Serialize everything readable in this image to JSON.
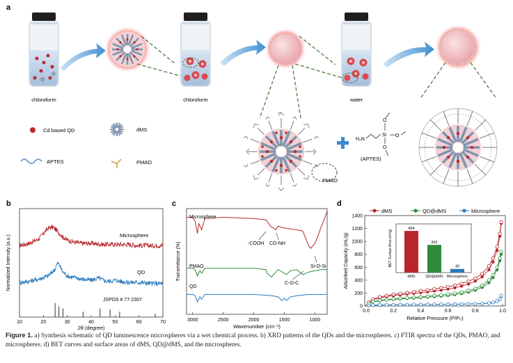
{
  "panel_labels": {
    "a": "a",
    "b": "b",
    "c": "c",
    "d": "d"
  },
  "panel_a": {
    "jar_labels": [
      "chloroform",
      "chloroform",
      "water"
    ],
    "legend": {
      "qd": "Cd based QD",
      "dms": "dMS",
      "aptes": "APTES",
      "pmao": "PMAO"
    },
    "aptes_label": "(APTES)",
    "pmao_label": "PMAO",
    "formula": {
      "h2n": "H₂N",
      "si": "Si",
      "o": "O"
    }
  },
  "chart_data": [
    {
      "id": "b",
      "type": "line",
      "xlabel": "2θ (degree)",
      "ylabel": "Normalized Intensity (a.u.)",
      "xlim": [
        10,
        70
      ],
      "xticks": [
        10,
        20,
        30,
        40,
        50,
        60,
        70
      ],
      "annotations": [
        "Microsphere",
        "QD",
        "JSPDS # 77-2307"
      ],
      "series": [
        {
          "name": "Microsphere",
          "color": "#b8262c",
          "x": [
            10,
            14,
            18,
            20,
            22,
            24,
            26,
            28,
            30,
            33,
            36,
            40,
            45,
            50,
            55,
            60,
            65,
            70
          ],
          "y": [
            0.66,
            0.68,
            0.72,
            0.77,
            0.82,
            0.83,
            0.79,
            0.74,
            0.71,
            0.69,
            0.68,
            0.68,
            0.67,
            0.67,
            0.67,
            0.66,
            0.66,
            0.66
          ]
        },
        {
          "name": "QD",
          "color": "#2b7bbd",
          "x": [
            10,
            14,
            18,
            22,
            24,
            25,
            26,
            27,
            28,
            30,
            32,
            36,
            40,
            43,
            45,
            47,
            50,
            55,
            60,
            65,
            70
          ],
          "y": [
            0.32,
            0.33,
            0.35,
            0.38,
            0.42,
            0.45,
            0.5,
            0.47,
            0.42,
            0.38,
            0.37,
            0.35,
            0.34,
            0.36,
            0.34,
            0.33,
            0.34,
            0.32,
            0.32,
            0.31,
            0.31
          ]
        }
      ],
      "reference_peaks": {
        "x": [
          24.9,
          26.5,
          28.2,
          36.6,
          43.7,
          47.9,
          51.9,
          66.8
        ],
        "height": [
          0.13,
          0.1,
          0.08,
          0.05,
          0.08,
          0.07,
          0.05,
          0.03
        ]
      }
    },
    {
      "id": "c",
      "type": "line",
      "xlabel": "Wavenumber (cm⁻¹)",
      "ylabel": "Transmittance (%)",
      "xlim": [
        3100,
        800
      ],
      "xticks": [
        3000,
        2500,
        2000,
        1500,
        1000
      ],
      "annotations": [
        "Microsphere",
        "PMAO",
        "QD",
        "-COOH",
        "CO-NH",
        "Si-O-Si",
        "C-O-C"
      ],
      "series": [
        {
          "name": "Microsphere",
          "color": "#b8262c",
          "x": [
            3100,
            3000,
            2960,
            2924,
            2900,
            2853,
            2800,
            2500,
            2000,
            1800,
            1730,
            1700,
            1640,
            1600,
            1550,
            1450,
            1300,
            1200,
            1100,
            1070,
            1000,
            950,
            900,
            850,
            800
          ],
          "y": [
            0.93,
            0.93,
            0.9,
            0.8,
            0.88,
            0.83,
            0.92,
            0.93,
            0.92,
            0.91,
            0.86,
            0.85,
            0.83,
            0.86,
            0.85,
            0.84,
            0.83,
            0.82,
            0.7,
            0.68,
            0.72,
            0.78,
            0.85,
            0.91,
            0.98
          ]
        },
        {
          "name": "PMAO",
          "color": "#2e8b3a",
          "x": [
            3100,
            3000,
            2960,
            2924,
            2880,
            2853,
            2800,
            2500,
            2000,
            1800,
            1780,
            1710,
            1600,
            1465,
            1400,
            1300,
            1200,
            1100,
            1000,
            900,
            800
          ],
          "y": [
            0.52,
            0.52,
            0.51,
            0.46,
            0.5,
            0.48,
            0.52,
            0.52,
            0.52,
            0.51,
            0.48,
            0.45,
            0.51,
            0.47,
            0.5,
            0.51,
            0.47,
            0.49,
            0.5,
            0.51,
            0.51
          ]
        },
        {
          "name": "QD",
          "color": "#2b7bbd",
          "x": [
            3100,
            3000,
            2960,
            2924,
            2880,
            2853,
            2800,
            2500,
            2000,
            1700,
            1600,
            1540,
            1500,
            1465,
            1400,
            1300,
            1100,
            1000,
            900,
            800
          ],
          "y": [
            0.31,
            0.31,
            0.3,
            0.25,
            0.29,
            0.27,
            0.31,
            0.31,
            0.31,
            0.3,
            0.29,
            0.26,
            0.28,
            0.26,
            0.29,
            0.3,
            0.31,
            0.31,
            0.31,
            0.31
          ]
        }
      ]
    },
    {
      "id": "d",
      "type": "line",
      "xlabel": "Relative Pressure (P/P₀)",
      "ylabel": "Adsorbed Capacity (mL/g)",
      "xlim": [
        0,
        1.0
      ],
      "ylim": [
        0,
        1400
      ],
      "xticks": [
        0.0,
        0.2,
        0.4,
        0.6,
        0.8,
        1.0
      ],
      "yticks": [
        0,
        200,
        400,
        600,
        800,
        1000,
        1200,
        1400
      ],
      "legend": [
        "dMS",
        "QD@dMS",
        "Microsphere"
      ],
      "legend_position": "top",
      "series": [
        {
          "name": "dMS",
          "color": "#b8262c",
          "x": [
            0.02,
            0.05,
            0.1,
            0.15,
            0.2,
            0.25,
            0.3,
            0.35,
            0.4,
            0.45,
            0.5,
            0.55,
            0.6,
            0.65,
            0.7,
            0.75,
            0.8,
            0.85,
            0.9,
            0.93,
            0.96,
            0.98,
            0.99
          ],
          "adsorption": [
            55,
            95,
            125,
            145,
            160,
            172,
            184,
            195,
            207,
            219,
            232,
            246,
            262,
            282,
            308,
            340,
            385,
            450,
            560,
            680,
            860,
            1080,
            1280
          ],
          "desorption": [
            60,
            105,
            140,
            160,
            178,
            192,
            206,
            220,
            234,
            248,
            264,
            280,
            298,
            320,
            348,
            382,
            430,
            500,
            620,
            740,
            920,
            1120,
            1300
          ]
        },
        {
          "name": "QD@dMS",
          "color": "#2e8b3a",
          "x": [
            0.02,
            0.05,
            0.1,
            0.15,
            0.2,
            0.25,
            0.3,
            0.35,
            0.4,
            0.45,
            0.5,
            0.55,
            0.6,
            0.65,
            0.7,
            0.75,
            0.8,
            0.85,
            0.9,
            0.93,
            0.96,
            0.98,
            0.99
          ],
          "adsorption": [
            35,
            62,
            80,
            92,
            100,
            108,
            115,
            122,
            129,
            136,
            144,
            153,
            163,
            176,
            192,
            214,
            244,
            288,
            360,
            440,
            560,
            700,
            800
          ],
          "desorption": [
            38,
            68,
            88,
            100,
            110,
            118,
            126,
            134,
            142,
            150,
            160,
            170,
            182,
            196,
            214,
            238,
            270,
            318,
            400,
            480,
            600,
            740,
            840
          ]
        },
        {
          "name": "Microsphere",
          "color": "#2b7bbd",
          "x": [
            0.02,
            0.05,
            0.1,
            0.15,
            0.2,
            0.25,
            0.3,
            0.35,
            0.4,
            0.45,
            0.5,
            0.55,
            0.6,
            0.65,
            0.7,
            0.75,
            0.8,
            0.85,
            0.9,
            0.93,
            0.96,
            0.98,
            0.99
          ],
          "adsorption": [
            8,
            12,
            15,
            17,
            18,
            19,
            20,
            21,
            22,
            23,
            24,
            25,
            26,
            27,
            28,
            30,
            32,
            35,
            42,
            52,
            70,
            100,
            150
          ],
          "desorption": [
            9,
            13,
            16,
            18,
            19,
            20,
            21,
            22,
            23,
            24,
            25,
            26,
            27,
            28,
            30,
            32,
            34,
            38,
            46,
            56,
            76,
            106,
            160
          ]
        }
      ],
      "inset": {
        "type": "bar",
        "ylabel": "BET Surface Area (m²/g)",
        "categories": [
          "dMS",
          "QD@dMS",
          "Microsphere"
        ],
        "values": [
          454,
          302,
          40
        ],
        "value_labels": [
          "454",
          "302",
          "40"
        ],
        "colors": [
          "#b8262c",
          "#2e8b3a",
          "#2b7bbd"
        ],
        "ylim": [
          0,
          500
        ]
      }
    }
  ],
  "caption": {
    "lead": "Figure 1.",
    "text": " a) Synthesis schematic of QD luminescence microspheres via a wet chemical process. b) XRD patterns of the QDs and the microspheres. c) FTIR spectra of the QDs, PMAO, and microspheres. d) BET curves and surface areas of dMS, QD@dMS, and the microspheres."
  }
}
